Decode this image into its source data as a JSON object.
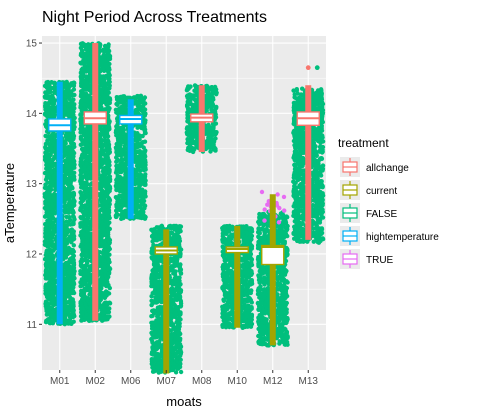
{
  "chart_data": {
    "type": "box_jitter",
    "title": "Night Period Across Treatments",
    "xlabel": "moats",
    "ylabel": "aTemperature",
    "ylim": [
      10.35,
      15.1
    ],
    "y_ticks": [
      11,
      12,
      13,
      14,
      15
    ],
    "grid": true,
    "panel_background": "#EBEBEB",
    "categories": [
      "M01",
      "M02",
      "M06",
      "M07",
      "M08",
      "M10",
      "M12",
      "M13"
    ],
    "legend": {
      "title": "treatment",
      "position": "right",
      "items": [
        {
          "label": "allchange",
          "color": "#F8766D"
        },
        {
          "label": "current",
          "color": "#A3A500"
        },
        {
          "label": "FALSE",
          "color": "#00BF7D"
        },
        {
          "label": "hightemperature",
          "color": "#00B0F6"
        },
        {
          "label": "TRUE",
          "color": "#E76BF3"
        }
      ]
    },
    "series": [
      {
        "moat": "M01",
        "treatment": "hightemperature",
        "color": "#00B0F6",
        "min": 11.0,
        "q1": 13.75,
        "median": 13.83,
        "q3": 13.92,
        "max": 14.45
      },
      {
        "moat": "M02",
        "treatment": "allchange",
        "color": "#F8766D",
        "min": 11.05,
        "q1": 13.85,
        "median": 13.93,
        "q3": 14.02,
        "max": 15.0
      },
      {
        "moat": "M06",
        "treatment": "hightemperature",
        "color": "#00B0F6",
        "min": 12.5,
        "q1": 13.85,
        "median": 13.92,
        "q3": 13.97,
        "max": 14.2
      },
      {
        "moat": "M07",
        "treatment": "current",
        "color": "#A3A500",
        "min": 10.3,
        "q1": 12.0,
        "median": 12.05,
        "q3": 12.1,
        "max": 12.35
      },
      {
        "moat": "M08",
        "treatment": "allchange",
        "color": "#F8766D",
        "min": 13.45,
        "q1": 13.88,
        "median": 13.94,
        "q3": 13.99,
        "max": 14.4
      },
      {
        "moat": "M10",
        "treatment": "current",
        "color": "#A3A500",
        "min": 10.95,
        "q1": 12.02,
        "median": 12.07,
        "q3": 12.1,
        "max": 12.4
      },
      {
        "moat": "M12",
        "treatment": "current",
        "color": "#A3A500",
        "min": 10.7,
        "q1": 11.85,
        "median": 12.1,
        "q3": 12.12,
        "max": 12.85
      },
      {
        "moat": "M13",
        "treatment": "allchange",
        "color": "#F8766D",
        "min": 12.2,
        "q1": 13.83,
        "median": 13.93,
        "q3": 14.02,
        "max": 14.4
      }
    ],
    "jitter": [
      {
        "moat": "M01",
        "treatment": "FALSE",
        "color": "#00BF7D",
        "ymin": 11.0,
        "ymax": 14.45
      },
      {
        "moat": "M02",
        "treatment": "FALSE",
        "color": "#00BF7D",
        "ymin": 11.05,
        "ymax": 15.0
      },
      {
        "moat": "M06",
        "treatment": "FALSE",
        "color": "#00BF7D",
        "ymin": 12.5,
        "ymax": 14.25
      },
      {
        "moat": "M07",
        "treatment": "FALSE",
        "color": "#00BF7D",
        "ymin": 10.3,
        "ymax": 12.4
      },
      {
        "moat": "M08",
        "treatment": "FALSE",
        "color": "#00BF7D",
        "ymin": 13.45,
        "ymax": 14.4
      },
      {
        "moat": "M10",
        "treatment": "FALSE",
        "color": "#00BF7D",
        "ymin": 10.95,
        "ymax": 12.4
      },
      {
        "moat": "M12",
        "treatment": "FALSE",
        "color": "#00BF7D",
        "ymin": 10.7,
        "ymax": 12.6
      },
      {
        "moat": "M12",
        "treatment": "TRUE",
        "color": "#E76BF3",
        "ymin": 12.45,
        "ymax": 12.9
      },
      {
        "moat": "M13",
        "treatment": "FALSE",
        "color": "#00BF7D",
        "ymin": 12.15,
        "ymax": 14.35
      }
    ],
    "outliers": [
      {
        "moat": "M13",
        "treatment": "allchange",
        "color": "#F8766D",
        "y": 14.65
      },
      {
        "moat": "M13",
        "treatment": "FALSE",
        "color": "#00BF7D",
        "y": 14.65
      }
    ]
  }
}
